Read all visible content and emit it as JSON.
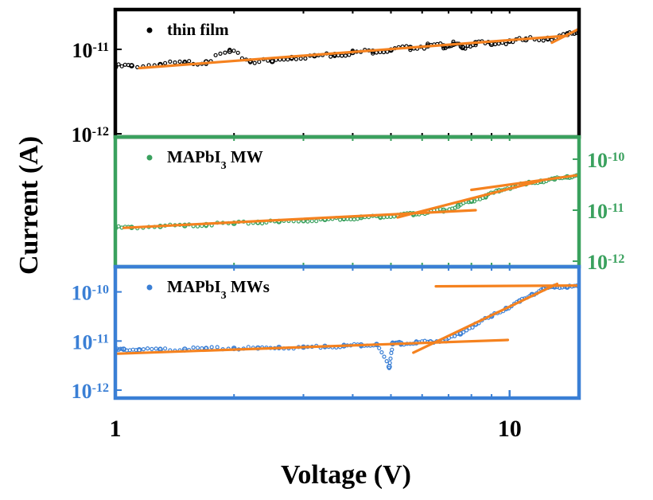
{
  "figure": {
    "xlabel": "Voltage (V)",
    "ylabel": "Current (A)",
    "x_scale": "log",
    "x_ticks": [
      {
        "value": 1,
        "label": "1"
      },
      {
        "value": 10,
        "label": "10"
      }
    ],
    "xlim": [
      1,
      15
    ]
  },
  "chart_data": [
    {
      "type": "scatter",
      "panel": "top",
      "frame_color": "#000000",
      "tick_label_color": "#000000",
      "tick_side": "left",
      "y_scale": "log",
      "ylim": [
        1e-12,
        2.6e-11
      ],
      "y_ticks": [
        {
          "value": 1e-11,
          "base": "10",
          "exp": "-11"
        },
        {
          "value": 1e-12,
          "base": "10",
          "exp": "-12"
        }
      ],
      "legend": {
        "text": "thin film",
        "sub": "",
        "rest": "",
        "position": "top-left"
      },
      "series": [
        {
          "kind": "points",
          "color": "#000000",
          "x": [
            1.0,
            1.1,
            1.3,
            1.5,
            1.7,
            1.95,
            2.2,
            2.5,
            2.8,
            3.2,
            3.6,
            4.0,
            4.5,
            5.0,
            5.6,
            6.2,
            6.8,
            7.2,
            7.6,
            8.2,
            9.0,
            10.0,
            11.0,
            12.5,
            14.0,
            15.0
          ],
          "y": [
            6.2e-12,
            6.4e-12,
            6.6e-12,
            6.9e-12,
            7.1e-12,
            9.5e-12,
            7.3e-12,
            7.2e-12,
            8e-12,
            8.4e-12,
            8.7e-12,
            9.2e-12,
            9.5e-12,
            9.8e-12,
            1.05e-11,
            1.1e-11,
            1.1e-11,
            1.15e-11,
            1.05e-11,
            1.2e-11,
            1.15e-11,
            1.25e-11,
            1.3e-11,
            1.35e-11,
            1.5e-11,
            1.6e-11
          ]
        },
        {
          "kind": "fit",
          "color": "#f5821f",
          "x": [
            1.15,
            14.0
          ],
          "y": [
            6e-12,
            1.45e-11
          ]
        },
        {
          "kind": "fit",
          "color": "#f5821f",
          "x": [
            12.8,
            15.0
          ],
          "y": [
            1.2e-11,
            1.75e-11
          ]
        }
      ]
    },
    {
      "type": "scatter",
      "panel": "middle",
      "frame_color": "#3aa15e",
      "tick_label_color": "#3aa15e",
      "tick_side": "right",
      "y_scale": "log",
      "ylim": [
        9e-13,
        2.2e-10
      ],
      "y_ticks": [
        {
          "value": 1e-10,
          "base": "10",
          "exp": "-10"
        },
        {
          "value": 1e-11,
          "base": "10",
          "exp": "-11"
        },
        {
          "value": 1e-12,
          "base": "10",
          "exp": "-12"
        }
      ],
      "legend": {
        "text": "MAPbI",
        "sub": "3",
        "rest": " MW",
        "position": "top-left"
      },
      "series": [
        {
          "kind": "points",
          "color": "#3aa15e",
          "x": [
            1.0,
            1.1,
            1.3,
            1.5,
            1.7,
            2.0,
            2.3,
            2.6,
            3.0,
            3.4,
            3.8,
            4.2,
            4.7,
            5.2,
            5.7,
            6.2,
            6.8,
            7.4,
            8.0,
            8.7,
            9.4,
            10.2,
            11.0,
            12.0,
            13.0,
            14.0,
            15.0
          ],
          "y": [
            4.5e-12,
            4.6e-12,
            4.8e-12,
            5e-12,
            5.2e-12,
            5.5e-12,
            5.8e-12,
            6e-12,
            6.3e-12,
            6.6e-12,
            6.9e-12,
            7.2e-12,
            7.5e-12,
            7.9e-12,
            8.5e-12,
            9.2e-12,
            1e-11,
            1.2e-11,
            1.5e-11,
            1.9e-11,
            2.4e-11,
            2.9e-11,
            3.3e-11,
            3.7e-11,
            4.1e-11,
            4.5e-11,
            4.8e-11
          ]
        },
        {
          "kind": "fit",
          "color": "#f5821f",
          "x": [
            1.05,
            8.2
          ],
          "y": [
            4.5e-12,
            1e-11
          ]
        },
        {
          "kind": "fit",
          "color": "#f5821f",
          "x": [
            5.2,
            12.0
          ],
          "y": [
            7.2e-12,
            3.8e-11
          ]
        },
        {
          "kind": "fit",
          "color": "#f5821f",
          "x": [
            8.0,
            15.0
          ],
          "y": [
            2.5e-11,
            4.9e-11
          ]
        }
      ]
    },
    {
      "type": "scatter",
      "panel": "bottom",
      "frame_color": "#3a7fd5",
      "tick_label_color": "#3a7fd5",
      "tick_side": "left",
      "y_scale": "log",
      "ylim": [
        8e-13,
        2.6e-10
      ],
      "y_ticks": [
        {
          "value": 1e-10,
          "base": "10",
          "exp": "-10"
        },
        {
          "value": 1e-11,
          "base": "10",
          "exp": "-11"
        },
        {
          "value": 1e-12,
          "base": "10",
          "exp": "-12"
        }
      ],
      "legend": {
        "text": "MAPbI",
        "sub": "3",
        "rest": " MWs",
        "position": "top-left"
      },
      "series": [
        {
          "kind": "points",
          "color": "#3a7fd5",
          "x": [
            1.0,
            1.05,
            1.15,
            1.3,
            1.5,
            1.7,
            2.0,
            2.3,
            2.6,
            3.0,
            3.4,
            3.8,
            4.2,
            4.6,
            4.95,
            5.05,
            5.3,
            5.8,
            6.3,
            6.9,
            7.5,
            8.2,
            9.0,
            9.8,
            10.6,
            11.4,
            12.2,
            13.0,
            14.0,
            15.0
          ],
          "y": [
            6.5e-12,
            6.8e-12,
            6.6e-12,
            6.7e-12,
            6.8e-12,
            7e-12,
            7.1e-12,
            7.2e-12,
            7.4e-12,
            7.5e-12,
            7.8e-12,
            8e-12,
            8.3e-12,
            8.5e-12,
            3e-12,
            8.8e-12,
            9e-12,
            9.2e-12,
            9.6e-12,
            1.05e-11,
            1.4e-11,
            2.2e-11,
            3.2e-11,
            4.6e-11,
            6.5e-11,
            8.8e-11,
            1.15e-10,
            1.3e-10,
            1.25e-10,
            1.3e-10
          ]
        },
        {
          "kind": "fit",
          "color": "#f5821f",
          "x": [
            1.0,
            9.9
          ],
          "y": [
            5.5e-12,
            1.05e-11
          ]
        },
        {
          "kind": "fit",
          "color": "#f5821f",
          "x": [
            5.7,
            13.2
          ],
          "y": [
            5.8e-12,
            1.45e-10
          ]
        },
        {
          "kind": "fit",
          "color": "#f5821f",
          "x": [
            6.5,
            15.0
          ],
          "y": [
            1.3e-10,
            1.35e-10
          ]
        }
      ]
    }
  ]
}
